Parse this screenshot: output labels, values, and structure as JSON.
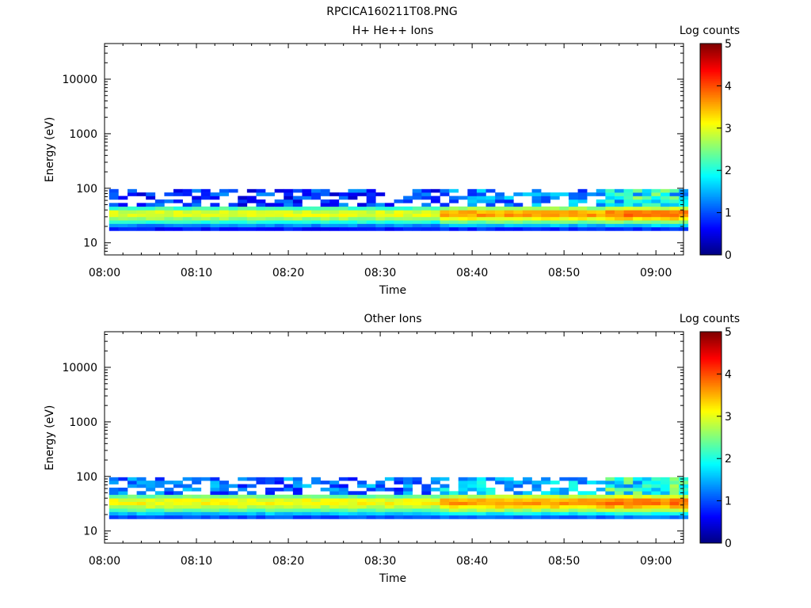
{
  "figure": {
    "title": "RPCICA160211T08.PNG"
  },
  "colormap": [
    "#00007f",
    "#0000ff",
    "#007fff",
    "#00ffff",
    "#7fff7f",
    "#ffff00",
    "#ff7f00",
    "#ff0000",
    "#7f0000"
  ],
  "chart_data": [
    {
      "type": "heatmap",
      "title": "H+ He++ Ions",
      "xlabel": "Time",
      "ylabel": "Energy (eV)",
      "yscale": "log",
      "ylim": [
        6,
        45000
      ],
      "xlim_minutes": [
        0,
        63
      ],
      "x_ticks": [
        "08:00",
        "08:10",
        "08:20",
        "08:30",
        "08:40",
        "08:50",
        "09:00"
      ],
      "y_ticks": [
        "10",
        "100",
        "1000",
        "10000"
      ],
      "colorbar": {
        "label": "Log counts",
        "range": [
          0,
          5
        ],
        "ticks": [
          "0",
          "1",
          "2",
          "3",
          "4",
          "5"
        ]
      },
      "time_start": "08:01",
      "time_end": "09:03",
      "time_step_minutes": 1,
      "energy_channels_eV": [
        18,
        21,
        24,
        28,
        32,
        37,
        43,
        50,
        58,
        67,
        78,
        90
      ],
      "band_profile": [
        0.7,
        1.3,
        2.0,
        2.6,
        3.0,
        2.9,
        2.2,
        1.0,
        0.6,
        0.5,
        0.4,
        0.3
      ],
      "band_strength": {
        "segments": [
          {
            "from": "08:01",
            "to": "08:36",
            "peak_log_counts": 3.0,
            "upper_channels_log_counts": 0.6
          },
          {
            "from": "08:37",
            "to": "08:54",
            "peak_log_counts": 3.6,
            "upper_channels_log_counts": 1.0
          },
          {
            "from": "08:55",
            "to": "09:03",
            "peak_log_counts": 3.8,
            "upper_channels_log_counts": 1.9
          }
        ]
      }
    },
    {
      "type": "heatmap",
      "title": "Other Ions",
      "xlabel": "Time",
      "ylabel": "Energy (eV)",
      "yscale": "log",
      "ylim": [
        6,
        45000
      ],
      "xlim_minutes": [
        0,
        63
      ],
      "x_ticks": [
        "08:00",
        "08:10",
        "08:20",
        "08:30",
        "08:40",
        "08:50",
        "09:00"
      ],
      "y_ticks": [
        "10",
        "100",
        "1000",
        "10000"
      ],
      "colorbar": {
        "label": "Log counts",
        "range": [
          0,
          5
        ],
        "ticks": [
          "0",
          "1",
          "2",
          "3",
          "4",
          "5"
        ]
      },
      "time_start": "08:01",
      "time_end": "09:03",
      "time_step_minutes": 1,
      "energy_channels_eV": [
        18,
        21,
        24,
        28,
        32,
        37,
        43,
        50,
        58,
        67,
        78,
        90
      ],
      "band_profile": [
        1.0,
        1.6,
        2.3,
        2.8,
        3.1,
        3.0,
        2.4,
        1.4,
        1.1,
        0.9,
        0.8,
        0.7
      ],
      "band_strength": {
        "segments": [
          {
            "from": "08:01",
            "to": "08:36",
            "peak_log_counts": 3.1,
            "upper_channels_log_counts": 0.9
          },
          {
            "from": "08:37",
            "to": "08:54",
            "peak_log_counts": 3.6,
            "upper_channels_log_counts": 1.3
          },
          {
            "from": "08:55",
            "to": "09:03",
            "peak_log_counts": 3.8,
            "upper_channels_log_counts": 2.0
          }
        ]
      }
    }
  ]
}
